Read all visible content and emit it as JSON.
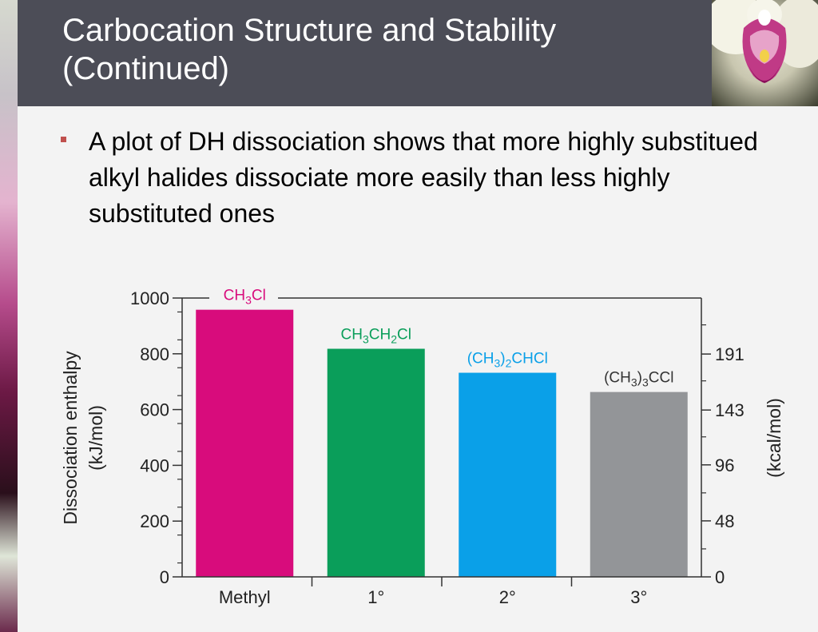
{
  "slide": {
    "title": "Carbocation Structure and Stability (Continued)",
    "bullet": "A plot of DH dissociation shows that more highly substitued alkyl halides dissociate more easily than less highly substituted ones"
  },
  "colors": {
    "title_bar": "#4c4d57",
    "bullet": "#c0504d",
    "content_bg": "#f3f3f3"
  },
  "chart_data": {
    "type": "bar",
    "categories": [
      "Methyl",
      "1°",
      "2°",
      "3°"
    ],
    "values": [
      958,
      818,
      732,
      663
    ],
    "bar_labels": [
      {
        "main": "CH",
        "sub1": "3",
        "mid": "Cl",
        "sub2": "",
        "end": ""
      },
      {
        "main": "CH",
        "sub1": "3",
        "mid": "CH",
        "sub2": "2",
        "end": "Cl"
      },
      {
        "main": "(CH",
        "sub1": "3",
        "mid": ")",
        "sub2": "2",
        "end": "CHCl"
      },
      {
        "main": "(CH",
        "sub1": "3",
        "mid": ")",
        "sub2": "3",
        "end": "CCl"
      }
    ],
    "colors": [
      "#d80c7c",
      "#0a9e5a",
      "#0aa0e8",
      "#939598"
    ],
    "label_colors": [
      "#d80c7c",
      "#0a9e5a",
      "#0aa0e8",
      "#333333"
    ],
    "ylabel": "Dissociation enthalpy",
    "ylabel_unit": "(kJ/mol)",
    "y2label": "(kcal/mol)",
    "ylim": [
      0,
      1000
    ],
    "yticks": [
      0,
      200,
      400,
      600,
      800,
      1000
    ],
    "y2ticks": [
      0,
      48,
      96,
      143,
      191
    ],
    "grid": false
  }
}
